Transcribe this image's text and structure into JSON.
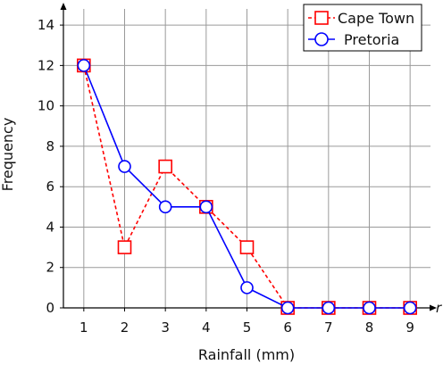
{
  "chart_data": {
    "type": "line",
    "xlabel": "Rainfall (mm)",
    "ylabel": "Frequency",
    "x_axis_end_label": "r",
    "x": [
      1,
      2,
      3,
      4,
      5,
      6,
      7,
      8,
      9
    ],
    "xlim": [
      0.5,
      9.5
    ],
    "ylim": [
      0,
      14.8
    ],
    "xticks": [
      1,
      2,
      3,
      4,
      5,
      6,
      7,
      8,
      9
    ],
    "yticks": [
      0,
      2,
      4,
      6,
      8,
      10,
      12,
      14
    ],
    "grid": true,
    "legend_position": "top-right",
    "series": [
      {
        "name": "Cape Town",
        "values": [
          12,
          3,
          7,
          5,
          3,
          0,
          0,
          0,
          0
        ],
        "color": "#ff0000",
        "marker": "square",
        "line": "dashed"
      },
      {
        "name": "Pretoria",
        "values": [
          12,
          7,
          5,
          5,
          1,
          0,
          0,
          0,
          0
        ],
        "color": "#0000ff",
        "marker": "circle",
        "line": "solid"
      }
    ]
  }
}
